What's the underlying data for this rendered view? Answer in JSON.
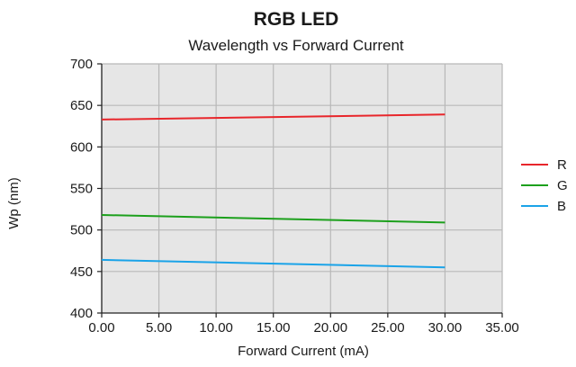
{
  "chart_data": {
    "type": "line",
    "title": "RGB LED",
    "subtitle": "Wavelength vs Forward Current",
    "xlabel": "Forward Current (mA)",
    "ylabel": "Wp (nm)",
    "xlim": [
      0,
      35
    ],
    "ylim": [
      400,
      700
    ],
    "x_ticks": [
      0,
      5,
      10,
      15,
      20,
      25,
      30,
      35
    ],
    "x_tick_labels": [
      "0.00",
      "5.00",
      "10.00",
      "15.00",
      "20.00",
      "25.00",
      "30.00",
      "35.00"
    ],
    "y_ticks": [
      400,
      450,
      500,
      550,
      600,
      650,
      700
    ],
    "y_tick_labels": [
      "400",
      "450",
      "500",
      "550",
      "600",
      "650",
      "700"
    ],
    "grid": true,
    "legend_position": "right",
    "plot_background": "#e6e6e6",
    "grid_color": "#b8b8b8",
    "series": [
      {
        "name": "R",
        "color": "#e8262b",
        "points": [
          [
            0,
            633
          ],
          [
            30,
            639
          ]
        ]
      },
      {
        "name": "G",
        "color": "#1ca01c",
        "points": [
          [
            0,
            518
          ],
          [
            30,
            509
          ]
        ]
      },
      {
        "name": "B",
        "color": "#1aa3e8",
        "points": [
          [
            0,
            464
          ],
          [
            30,
            455
          ]
        ]
      }
    ]
  }
}
